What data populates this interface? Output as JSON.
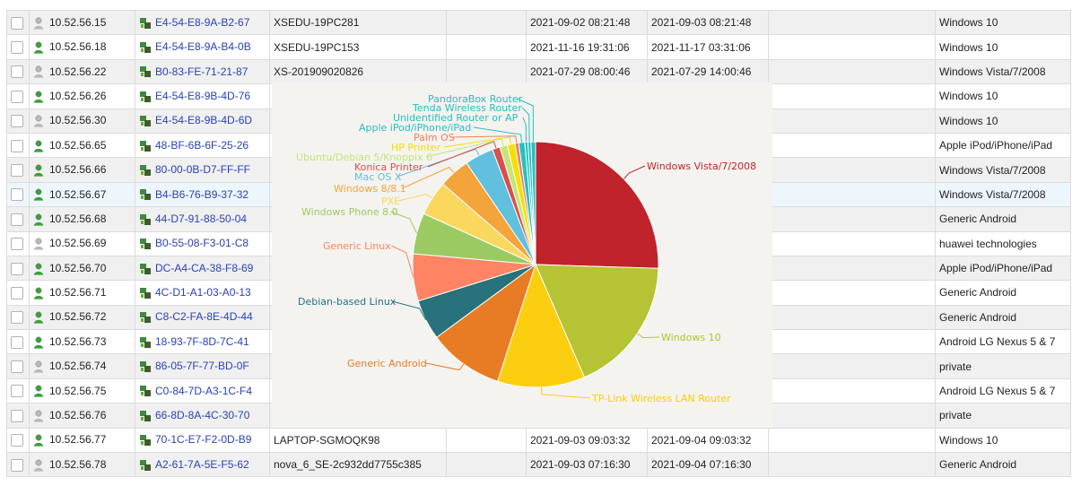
{
  "rows": [
    {
      "ip": "10.52.56.15",
      "mac": "E4-54-E8-9A-B2-67",
      "host": "XSEDU-19PC281",
      "first": "2021-09-02 08:21:48",
      "last": "2021-09-03 08:21:48",
      "os": "Windows 10",
      "status": "offline"
    },
    {
      "ip": "10.52.56.18",
      "mac": "E4-54-E8-9A-B4-0B",
      "host": "XSEDU-19PC153",
      "first": "2021-11-16 19:31:06",
      "last": "2021-11-17 03:31:06",
      "os": "Windows 10",
      "status": "online"
    },
    {
      "ip": "10.52.56.22",
      "mac": "B0-83-FE-71-21-87",
      "host": "XS-201909020826",
      "first": "2021-07-29 08:00:46",
      "last": "2021-07-29 14:00:46",
      "os": "Windows Vista/7/2008",
      "status": "offline"
    },
    {
      "ip": "10.52.56.26",
      "mac": "E4-54-E8-9B-4D-76",
      "host": "",
      "first": "",
      "last": "",
      "os": "Windows 10",
      "status": "online"
    },
    {
      "ip": "10.52.56.30",
      "mac": "E4-54-E8-9B-4D-6D",
      "host": "",
      "first": "",
      "last": "",
      "os": "Windows 10",
      "status": "offline"
    },
    {
      "ip": "10.52.56.65",
      "mac": "48-BF-6B-6F-25-26",
      "host": "",
      "first": "",
      "last": "",
      "os": "Apple iPod/iPhone/iPad",
      "status": "online"
    },
    {
      "ip": "10.52.56.66",
      "mac": "80-00-0B-D7-FF-FF",
      "host": "",
      "first": "",
      "last": "",
      "os": "Windows Vista/7/2008",
      "status": "online"
    },
    {
      "ip": "10.52.56.67",
      "mac": "B4-B6-76-B9-37-32",
      "host": "",
      "first": "",
      "last": "",
      "os": "Windows Vista/7/2008",
      "status": "online"
    },
    {
      "ip": "10.52.56.68",
      "mac": "44-D7-91-88-50-04",
      "host": "",
      "first": "",
      "last": "",
      "os": "Generic Android",
      "status": "online"
    },
    {
      "ip": "10.52.56.69",
      "mac": "B0-55-08-F3-01-C8",
      "host": "",
      "first": "",
      "last": "",
      "os": "huawei technologies",
      "status": "offline"
    },
    {
      "ip": "10.52.56.70",
      "mac": "DC-A4-CA-38-F8-69",
      "host": "",
      "first": "",
      "last": "",
      "os": "Apple iPod/iPhone/iPad",
      "status": "online"
    },
    {
      "ip": "10.52.56.71",
      "mac": "4C-D1-A1-03-A0-13",
      "host": "",
      "first": "",
      "last": "",
      "os": "Generic Android",
      "status": "online"
    },
    {
      "ip": "10.52.56.72",
      "mac": "C8-C2-FA-8E-4D-44",
      "host": "",
      "first": "",
      "last": "",
      "os": "Generic Android",
      "status": "online"
    },
    {
      "ip": "10.52.56.73",
      "mac": "18-93-7F-8D-7C-41",
      "host": "",
      "first": "",
      "last": "",
      "os": "Android LG Nexus 5 & 7",
      "status": "online"
    },
    {
      "ip": "10.52.56.74",
      "mac": "86-05-7F-77-BD-0F",
      "host": "",
      "first": "",
      "last": "",
      "os": "private",
      "status": "offline"
    },
    {
      "ip": "10.52.56.75",
      "mac": "C0-84-7D-A3-1C-F4",
      "host": "",
      "first": "",
      "last": "",
      "os": "Android LG Nexus 5 & 7",
      "status": "online"
    },
    {
      "ip": "10.52.56.76",
      "mac": "66-8D-8A-4C-30-70",
      "host": "",
      "first": "",
      "last": "",
      "os": "private",
      "status": "offline"
    },
    {
      "ip": "10.52.56.77",
      "mac": "70-1C-E7-F2-0D-B9",
      "host": "LAPTOP-SGMOQK98",
      "first": "2021-09-03 09:03:32",
      "last": "2021-09-04 09:03:32",
      "os": "Windows 10",
      "status": "online"
    },
    {
      "ip": "10.52.56.78",
      "mac": "A2-61-7A-5E-F5-62",
      "host": "nova_6_SE-2c932dd7755c385",
      "first": "2021-09-03 07:16:30",
      "last": "2021-09-04 07:16:30",
      "os": "Generic Android",
      "status": "offline"
    }
  ],
  "selected_row": 7,
  "icons": {
    "status_online": "user-online-icon",
    "status_offline": "user-offline-icon",
    "network": "network-device-icon"
  },
  "colors": {
    "mac_link": "#2a42b6",
    "online": "#3ba03b",
    "offline": "#b9b9b9",
    "network": "#4e7d2e"
  },
  "chart_data": {
    "type": "pie",
    "title": "",
    "start_angle_deg": 0,
    "slices": [
      {
        "name": "Windows Vista/7/2008",
        "value": 25.5,
        "color": "#c0232c"
      },
      {
        "name": "Windows 10",
        "value": 18.0,
        "color": "#b5c334"
      },
      {
        "name": "TP-Link Wireless LAN Router",
        "value": 11.5,
        "color": "#fcce10"
      },
      {
        "name": "Generic Android",
        "value": 9.9,
        "color": "#e87c25"
      },
      {
        "name": "Debian-based Linux",
        "value": 5.3,
        "color": "#27727b"
      },
      {
        "name": "Generic Linux",
        "value": 6.2,
        "color": "#fe8463"
      },
      {
        "name": "Windows Phone 8.0",
        "value": 5.4,
        "color": "#9bca63"
      },
      {
        "name": "PXE",
        "value": 4.6,
        "color": "#fad860"
      },
      {
        "name": "Windows 8/8.1",
        "value": 4.1,
        "color": "#f3a43b"
      },
      {
        "name": "Mac OS X",
        "value": 3.8,
        "color": "#60c0dd"
      },
      {
        "name": "Konica Printer",
        "value": 1.0,
        "color": "#d7504b"
      },
      {
        "name": "Ubuntu/Debian 5/Knoppix 6",
        "value": 1.0,
        "color": "#c6e579"
      },
      {
        "name": "HP Printer",
        "value": 1.0,
        "color": "#f4e001"
      },
      {
        "name": "Palm OS",
        "value": 0.5,
        "color": "#f0805a"
      },
      {
        "name": "Apple iPod/iPhone/iPad",
        "value": 0.8,
        "color": "#26c0c0"
      },
      {
        "name": "Unidentified Router or AP",
        "value": 0.4,
        "color": "#26c0c0"
      },
      {
        "name": "Tenda Wireless Router",
        "value": 0.4,
        "color": "#26c0c0"
      },
      {
        "name": "PandoraBox Router",
        "value": 0.6,
        "color": "#26c0c0"
      }
    ],
    "legend": "none"
  }
}
